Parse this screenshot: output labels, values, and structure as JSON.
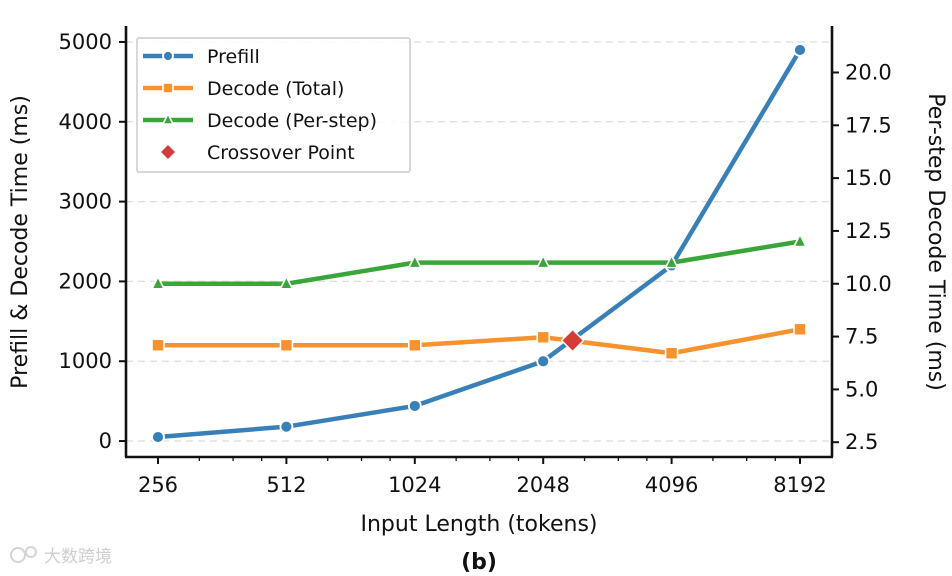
{
  "watermark": "大数跨境",
  "chart_data": {
    "type": "line",
    "x_scale": "log2",
    "x": [
      256,
      512,
      1024,
      2048,
      4096,
      8192
    ],
    "x_tick_labels": [
      "256",
      "512",
      "1024",
      "2048",
      "4096",
      "8192"
    ],
    "xlabel": "Input Length (tokens)",
    "ylabel": "Prefill & Decode Time (ms)",
    "ylabel_right": "Per-step Decode Time (ms)",
    "ylim": [
      -200,
      5200
    ],
    "yticks": [
      0,
      1000,
      2000,
      3000,
      4000,
      5000
    ],
    "ylim_right": [
      1.8,
      22.2
    ],
    "yticks_right": [
      2.5,
      5.0,
      7.5,
      10.0,
      12.5,
      15.0,
      17.5,
      20.0
    ],
    "yticks_right_labels": [
      "2.5",
      "5.0",
      "7.5",
      "10.0",
      "12.5",
      "15.0",
      "17.5",
      "20.0"
    ],
    "grid": "y-dashed",
    "legend_position": "top-left",
    "caption": "(b)",
    "series": [
      {
        "name": "Prefill",
        "axis": "left",
        "marker": "circle",
        "color": "#3a80b8",
        "values": [
          50,
          180,
          440,
          1000,
          2200,
          4900
        ]
      },
      {
        "name": "Decode (Total)",
        "axis": "left",
        "marker": "square",
        "color": "#f7922e",
        "values": [
          1200,
          1200,
          1200,
          1300,
          1100,
          1400
        ]
      },
      {
        "name": "Decode (Per-step)",
        "axis": "right",
        "marker": "triangle",
        "color": "#3aa63a",
        "values": [
          10.0,
          10.0,
          11.0,
          11.0,
          11.0,
          12.0
        ]
      }
    ],
    "annotations": [
      {
        "name": "Crossover Point",
        "marker": "diamond",
        "color": "#d43c3c",
        "x": 2400,
        "y": 1260
      }
    ]
  }
}
